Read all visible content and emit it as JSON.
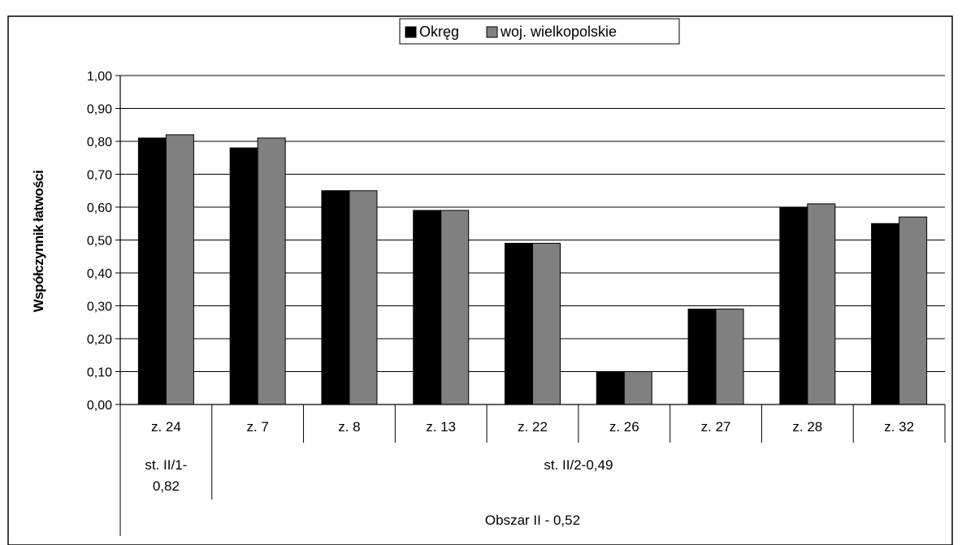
{
  "chart_data": {
    "type": "bar",
    "title": "",
    "ylabel": "Współczynnik łatwości",
    "xlabel": "",
    "ylim": [
      0,
      1.0
    ],
    "y_ticks": [
      "0,00",
      "0,10",
      "0,20",
      "0,30",
      "0,40",
      "0,50",
      "0,60",
      "0,70",
      "0,80",
      "0,90",
      "1,00"
    ],
    "categories": [
      "z. 24",
      "z. 7",
      "z. 8",
      "z. 13",
      "z. 22",
      "z. 26",
      "z. 27",
      "z. 28",
      "z. 32"
    ],
    "series": [
      {
        "name": "Okręg",
        "color": "#000000",
        "values": [
          0.81,
          0.78,
          0.65,
          0.59,
          0.49,
          0.1,
          0.29,
          0.6,
          0.55
        ]
      },
      {
        "name": "woj. wielkopolskie",
        "color": "#808080",
        "values": [
          0.82,
          0.81,
          0.65,
          0.59,
          0.49,
          0.1,
          0.29,
          0.61,
          0.57
        ]
      }
    ],
    "category_groups": [
      {
        "label": "st. II/1-",
        "label2": "0,82",
        "categories": [
          "z. 24"
        ]
      },
      {
        "label": "st. II/2-0,49",
        "label2": "",
        "categories": [
          "z. 7",
          "z. 8",
          "z. 13",
          "z. 22",
          "z. 26",
          "z. 27",
          "z. 28",
          "z. 32"
        ]
      }
    ],
    "outer_group": {
      "label": "Obszar II - 0,52"
    },
    "grid": true,
    "legend_position": "top-center"
  }
}
